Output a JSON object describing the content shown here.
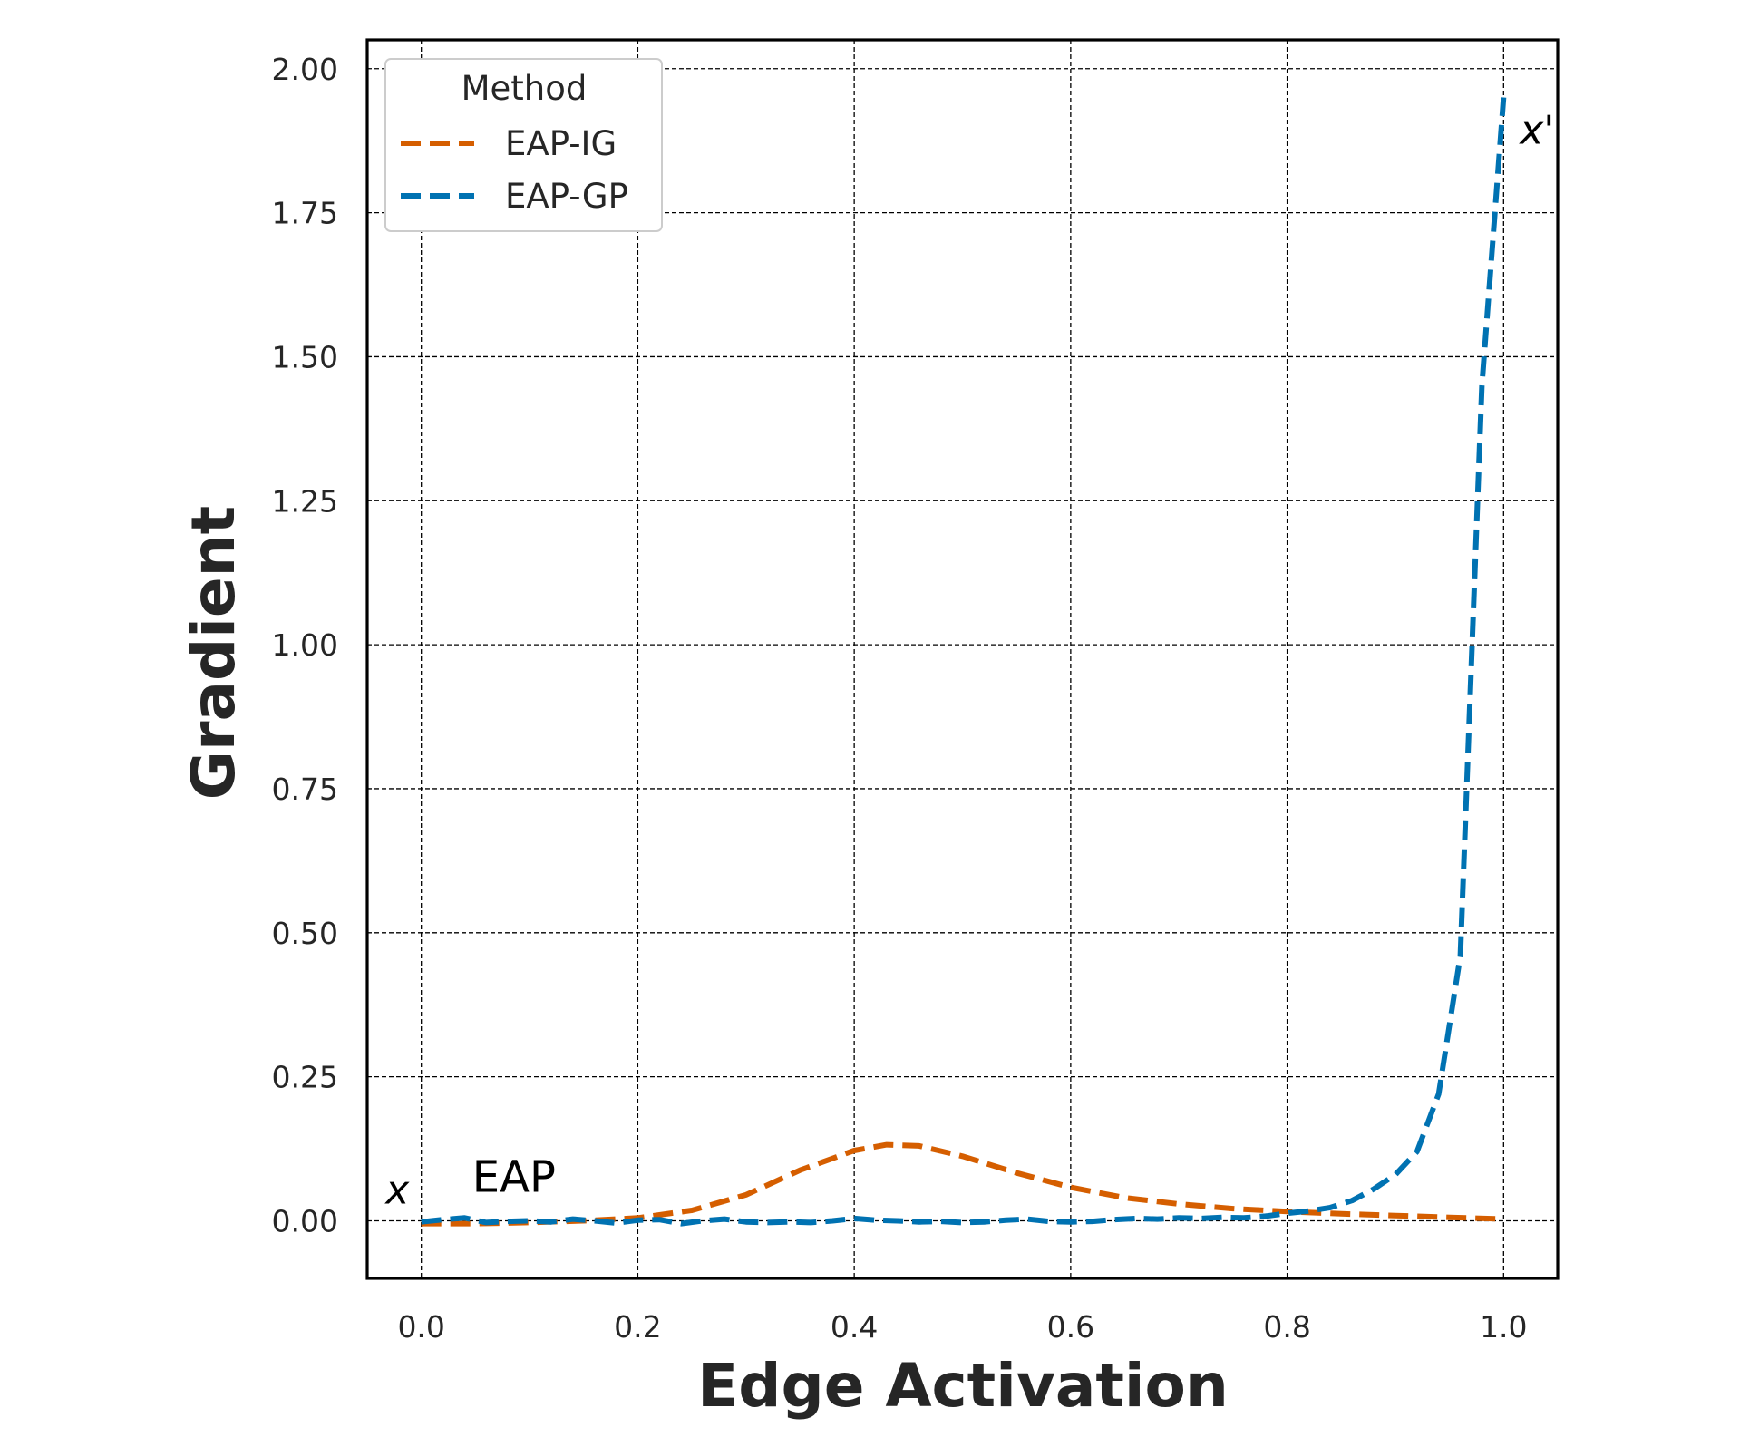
{
  "chart_data": {
    "type": "line",
    "title": "",
    "xlabel": "Edge Activation",
    "ylabel": "Gradient",
    "xlim": [
      -0.05,
      1.05
    ],
    "ylim": [
      -0.1,
      2.05
    ],
    "x_ticks": [
      0.0,
      0.2,
      0.4,
      0.6,
      0.8,
      1.0
    ],
    "x_tick_labels": [
      "0.0",
      "0.2",
      "0.4",
      "0.6",
      "0.8",
      "1.0"
    ],
    "y_ticks": [
      0.0,
      0.25,
      0.5,
      0.75,
      1.0,
      1.25,
      1.5,
      1.75,
      2.0
    ],
    "y_tick_labels": [
      "0.00",
      "0.25",
      "0.50",
      "0.75",
      "1.00",
      "1.25",
      "1.50",
      "1.75",
      "2.00"
    ],
    "grid": true,
    "grid_style": "dashed",
    "legend": {
      "title": "Method",
      "placement": "top-left"
    },
    "series": [
      {
        "name": "EAP-IG",
        "color": "#d55e00",
        "line_style": "dashed",
        "x": [
          0.0,
          0.05,
          0.1,
          0.15,
          0.2,
          0.25,
          0.3,
          0.35,
          0.4,
          0.43,
          0.46,
          0.5,
          0.55,
          0.6,
          0.65,
          0.7,
          0.75,
          0.8,
          0.85,
          0.9,
          0.95,
          1.0
        ],
        "y": [
          -0.005,
          -0.005,
          -0.003,
          0.0,
          0.005,
          0.018,
          0.045,
          0.088,
          0.122,
          0.132,
          0.13,
          0.112,
          0.083,
          0.058,
          0.04,
          0.029,
          0.021,
          0.016,
          0.012,
          0.009,
          0.006,
          0.003
        ]
      },
      {
        "name": "EAP-GP",
        "color": "#0072b2",
        "line_style": "dashed",
        "x": [
          0.0,
          0.02,
          0.04,
          0.06,
          0.08,
          0.1,
          0.12,
          0.14,
          0.16,
          0.18,
          0.2,
          0.22,
          0.24,
          0.26,
          0.28,
          0.3,
          0.32,
          0.34,
          0.36,
          0.38,
          0.4,
          0.42,
          0.44,
          0.46,
          0.48,
          0.5,
          0.52,
          0.54,
          0.56,
          0.58,
          0.6,
          0.62,
          0.64,
          0.66,
          0.68,
          0.7,
          0.72,
          0.74,
          0.76,
          0.78,
          0.8,
          0.82,
          0.84,
          0.86,
          0.88,
          0.9,
          0.92,
          0.94,
          0.96,
          0.98,
          1.0
        ],
        "y": [
          -0.002,
          0.002,
          0.005,
          -0.003,
          -0.001,
          0.0,
          -0.002,
          0.003,
          0.0,
          -0.004,
          0.001,
          0.002,
          -0.005,
          0.0,
          0.003,
          -0.002,
          -0.003,
          -0.002,
          -0.003,
          0.0,
          0.004,
          0.001,
          0.0,
          -0.002,
          -0.001,
          -0.003,
          -0.002,
          0.001,
          0.003,
          -0.001,
          -0.002,
          -0.001,
          0.002,
          0.004,
          0.003,
          0.005,
          0.004,
          0.006,
          0.005,
          0.008,
          0.013,
          0.017,
          0.023,
          0.035,
          0.055,
          0.08,
          0.12,
          0.22,
          0.46,
          1.45,
          1.95
        ]
      }
    ],
    "annotations": [
      {
        "text": "x",
        "x": -0.033,
        "y": 0.03,
        "style": "italic"
      },
      {
        "text": "EAP",
        "x": 0.047,
        "y": 0.05,
        "style": "normal"
      },
      {
        "text": "x'",
        "x": 1.015,
        "y": 1.87,
        "style": "italic"
      }
    ]
  }
}
